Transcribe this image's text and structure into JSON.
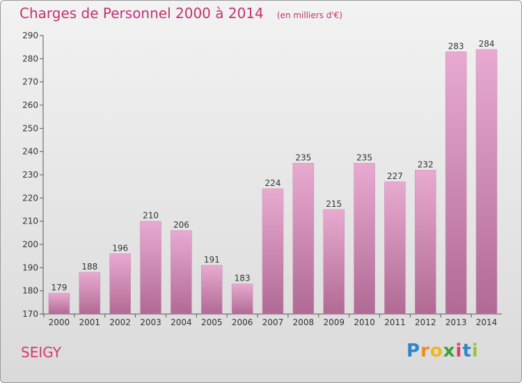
{
  "title": "Charges de Personnel 2000 à 2014",
  "subtitle": "(en milliers d'€)",
  "commune": "SEIGY",
  "brand": {
    "letters": [
      "P",
      "r",
      "o",
      "x",
      "i",
      "t",
      "i"
    ],
    "colors": [
      "#2e86c9",
      "#f08a1f",
      "#f0b81f",
      "#3aa13a",
      "#e23a6a",
      "#2e86c9",
      "#9bc43a"
    ]
  },
  "colors": {
    "title": "#c4306f",
    "bar_top": "#e8aad0",
    "bar_bottom": "#b06a94"
  },
  "chart_data": {
    "type": "bar",
    "categories": [
      "2000",
      "2001",
      "2002",
      "2003",
      "2004",
      "2005",
      "2006",
      "2007",
      "2008",
      "2009",
      "2010",
      "2011",
      "2012",
      "2013",
      "2014"
    ],
    "values": [
      179,
      188,
      196,
      210,
      206,
      191,
      183,
      224,
      235,
      215,
      235,
      227,
      232,
      283,
      284
    ],
    "ylim": [
      170,
      290
    ],
    "yticks": [
      170,
      180,
      190,
      200,
      210,
      220,
      230,
      240,
      250,
      260,
      270,
      280,
      290
    ],
    "grid": false
  }
}
